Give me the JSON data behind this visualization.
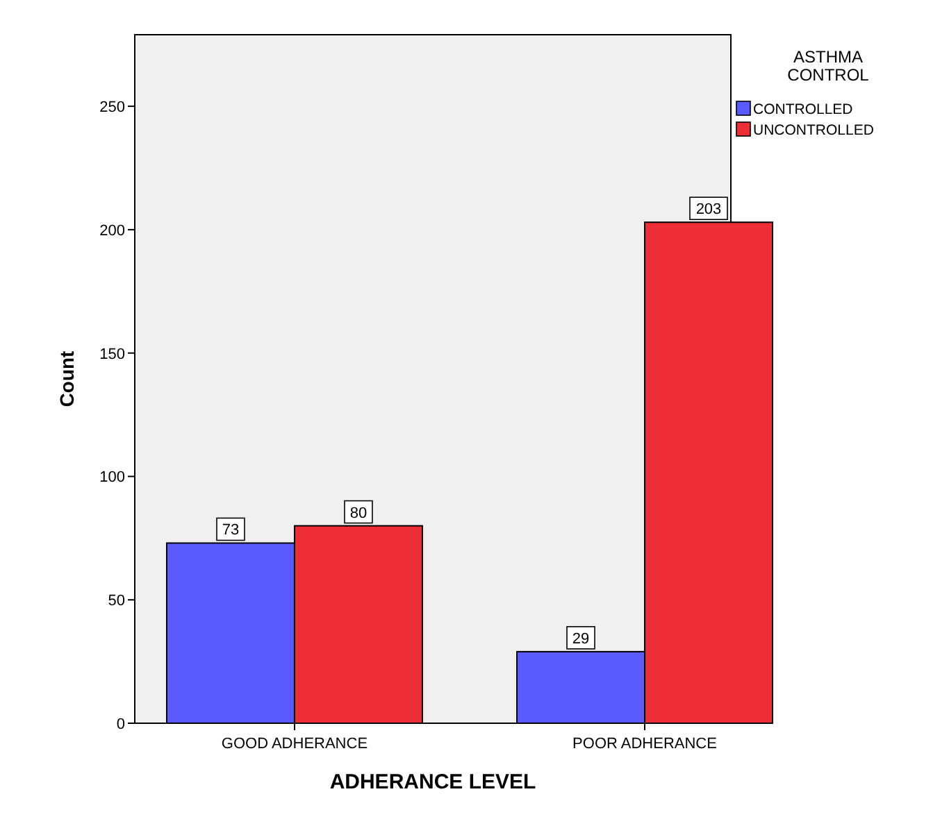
{
  "chart_data": {
    "type": "bar",
    "xlabel": "ADHERANCE LEVEL",
    "ylabel": "Count",
    "legend_title": "ASTHMA CONTROL",
    "categories": [
      "GOOD ADHERANCE",
      "POOR ADHERANCE"
    ],
    "series": [
      {
        "name": "CONTROLLED",
        "color": "#5a5aff",
        "values": [
          73,
          29
        ]
      },
      {
        "name": "UNCONTROLLED",
        "color": "#ee2e36",
        "values": [
          80,
          203
        ]
      }
    ],
    "ylim": [
      0,
      279
    ],
    "yticks": [
      0,
      50,
      100,
      150,
      200,
      250
    ],
    "data_labels": true,
    "legend": "top right",
    "grid": false
  }
}
